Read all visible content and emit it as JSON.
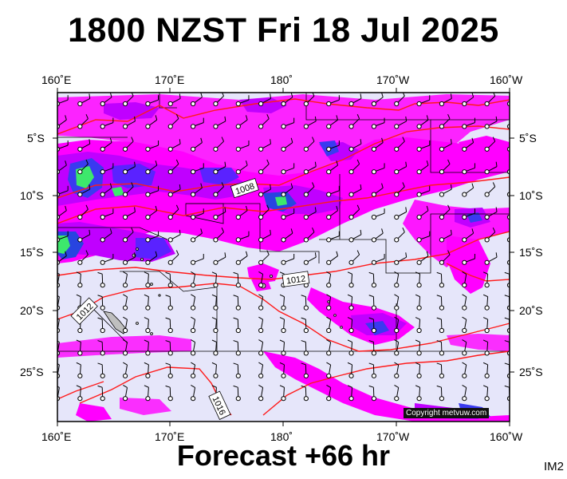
{
  "title": "1800 NZST Fri 18 Jul 2025",
  "footer": "Forecast +66 hr",
  "image_code": "IM2",
  "copyright": "Copyright metvuw.com",
  "axes": {
    "lon_top": [
      "160˚E",
      "170˚E",
      "180˚",
      "170˚W",
      "160˚W"
    ],
    "lon_bottom": [
      "160˚E",
      "170˚E",
      "180˚",
      "170˚W",
      "160˚W"
    ],
    "lat_left": [
      "5˚S",
      "10˚S",
      "15˚S",
      "20˚S",
      "25˚S"
    ],
    "lat_right": [
      "5˚S",
      "10˚S",
      "15˚S",
      "20˚S",
      "25˚S"
    ]
  },
  "isobar_labels": [
    "1008",
    "1012",
    "1012",
    "1016"
  ],
  "colors": {
    "background": "#e6e6fa",
    "rain_light": "#ff00ff",
    "rain_medium": "#c000ff",
    "rain_heavy": "#5a22ff",
    "rain_very_heavy": "#1c4ad8",
    "rain_extreme": "#3de86c",
    "isobar": "#ff0000",
    "coast": "#000000"
  }
}
